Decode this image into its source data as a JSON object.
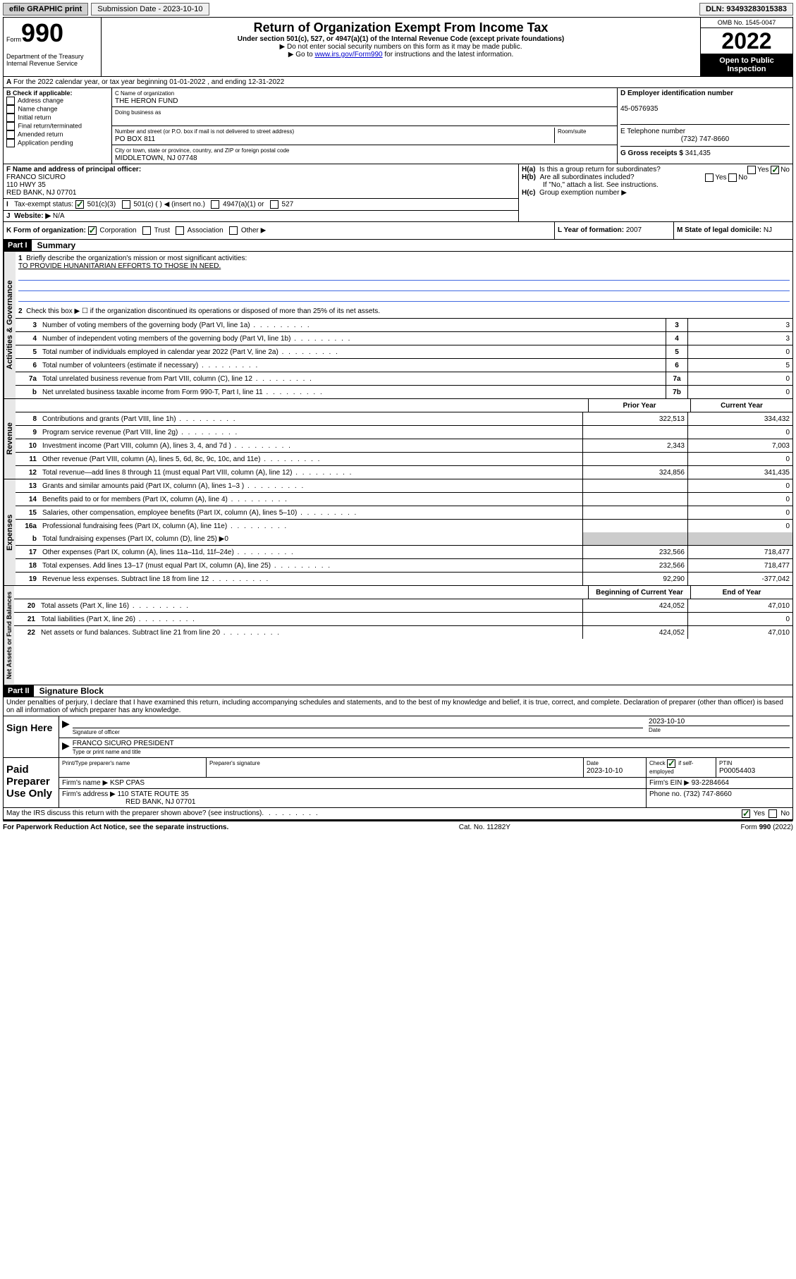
{
  "topbar": {
    "efile": "efile GRAPHIC print",
    "submission": "Submission Date - 2023-10-10",
    "dln": "DLN: 93493283015383"
  },
  "header": {
    "form_label": "Form",
    "form_number": "990",
    "dept": "Department of the Treasury\nInternal Revenue Service",
    "title": "Return of Organization Exempt From Income Tax",
    "subtitle": "Under section 501(c), 527, or 4947(a)(1) of the Internal Revenue Code (except private foundations)",
    "instr1": "▶ Do not enter social security numbers on this form as it may be made public.",
    "instr2_pre": "▶ Go to ",
    "instr2_link": "www.irs.gov/Form990",
    "instr2_post": " for instructions and the latest information.",
    "omb": "OMB No. 1545-0047",
    "year": "2022",
    "open": "Open to Public Inspection"
  },
  "line_a": "For the 2022 calendar year, or tax year beginning 01-01-2022   , and ending 12-31-2022",
  "box_b": {
    "label": "B Check if applicable:",
    "items": [
      "Address change",
      "Name change",
      "Initial return",
      "Final return/terminated",
      "Amended return",
      "Application pending"
    ]
  },
  "box_c": {
    "name_label": "C Name of organization",
    "name": "THE HERON FUND",
    "dba_label": "Doing business as",
    "street_label": "Number and street (or P.O. box if mail is not delivered to street address)",
    "room_label": "Room/suite",
    "street": "PO BOX 811",
    "city_label": "City or town, state or province, country, and ZIP or foreign postal code",
    "city": "MIDDLETOWN, NJ  07748"
  },
  "box_d": {
    "label": "D Employer identification number",
    "ein": "45-0576935"
  },
  "box_e": {
    "label": "E Telephone number",
    "phone": "(732) 747-8660"
  },
  "box_g": {
    "label": "G Gross receipts $",
    "amount": "341,435"
  },
  "box_f": {
    "label": "F Name and address of principal officer:",
    "name": "FRANCO SICURO",
    "addr1": "110 HWY 35",
    "addr2": "RED BANK, NJ  07701"
  },
  "box_h": {
    "ha": "Is this a group return for subordinates?",
    "hb": "Are all subordinates included?",
    "hb_note": "If \"No,\" attach a list. See instructions.",
    "hc": "Group exemption number ▶",
    "yes": "Yes",
    "no": "No"
  },
  "box_i": {
    "label": "Tax-exempt status:",
    "opts": [
      "501(c)(3)",
      "501(c) (  ) ◀ (insert no.)",
      "4947(a)(1) or",
      "527"
    ]
  },
  "box_j": {
    "label": "Website: ▶",
    "value": "N/A"
  },
  "box_k": {
    "label": "K Form of organization:",
    "opts": [
      "Corporation",
      "Trust",
      "Association",
      "Other ▶"
    ]
  },
  "box_l": {
    "label": "L Year of formation:",
    "value": "2007"
  },
  "box_m": {
    "label": "M State of legal domicile:",
    "value": "NJ"
  },
  "part1": {
    "header": "Part I",
    "title": "Summary",
    "line1": "Briefly describe the organization's mission or most significant activities:",
    "mission": "TO PROVIDE HUNANITARIAN EFFORTS TO THOSE IN NEED.",
    "line2": "Check this box ▶ ☐  if the organization discontinued its operations or disposed of more than 25% of its net assets.",
    "governance_label": "Activities & Governance",
    "revenue_label": "Revenue",
    "expenses_label": "Expenses",
    "netassets_label": "Net Assets or Fund Balances",
    "lines_gov": [
      {
        "n": "3",
        "t": "Number of voting members of the governing body (Part VI, line 1a)",
        "box": "3",
        "v": "3"
      },
      {
        "n": "4",
        "t": "Number of independent voting members of the governing body (Part VI, line 1b)",
        "box": "4",
        "v": "3"
      },
      {
        "n": "5",
        "t": "Total number of individuals employed in calendar year 2022 (Part V, line 2a)",
        "box": "5",
        "v": "0"
      },
      {
        "n": "6",
        "t": "Total number of volunteers (estimate if necessary)",
        "box": "6",
        "v": "5"
      },
      {
        "n": "7a",
        "t": "Total unrelated business revenue from Part VIII, column (C), line 12",
        "box": "7a",
        "v": "0"
      },
      {
        "n": "b",
        "t": "Net unrelated business taxable income from Form 990-T, Part I, line 11",
        "box": "7b",
        "v": "0"
      }
    ],
    "col_prior": "Prior Year",
    "col_current": "Current Year",
    "col_beg": "Beginning of Current Year",
    "col_end": "End of Year",
    "lines_rev": [
      {
        "n": "8",
        "t": "Contributions and grants (Part VIII, line 1h)",
        "p": "322,513",
        "c": "334,432"
      },
      {
        "n": "9",
        "t": "Program service revenue (Part VIII, line 2g)",
        "p": "",
        "c": "0"
      },
      {
        "n": "10",
        "t": "Investment income (Part VIII, column (A), lines 3, 4, and 7d )",
        "p": "2,343",
        "c": "7,003"
      },
      {
        "n": "11",
        "t": "Other revenue (Part VIII, column (A), lines 5, 6d, 8c, 9c, 10c, and 11e)",
        "p": "",
        "c": "0"
      },
      {
        "n": "12",
        "t": "Total revenue—add lines 8 through 11 (must equal Part VIII, column (A), line 12)",
        "p": "324,856",
        "c": "341,435"
      }
    ],
    "lines_exp": [
      {
        "n": "13",
        "t": "Grants and similar amounts paid (Part IX, column (A), lines 1–3 )",
        "p": "",
        "c": "0"
      },
      {
        "n": "14",
        "t": "Benefits paid to or for members (Part IX, column (A), line 4)",
        "p": "",
        "c": "0"
      },
      {
        "n": "15",
        "t": "Salaries, other compensation, employee benefits (Part IX, column (A), lines 5–10)",
        "p": "",
        "c": "0"
      },
      {
        "n": "16a",
        "t": "Professional fundraising fees (Part IX, column (A), line 11e)",
        "p": "",
        "c": "0"
      }
    ],
    "line16b": "Total fundraising expenses (Part IX, column (D), line 25) ▶0",
    "lines_exp2": [
      {
        "n": "17",
        "t": "Other expenses (Part IX, column (A), lines 11a–11d, 11f–24e)",
        "p": "232,566",
        "c": "718,477"
      },
      {
        "n": "18",
        "t": "Total expenses. Add lines 13–17 (must equal Part IX, column (A), line 25)",
        "p": "232,566",
        "c": "718,477"
      },
      {
        "n": "19",
        "t": "Revenue less expenses. Subtract line 18 from line 12",
        "p": "92,290",
        "c": "-377,042"
      }
    ],
    "lines_net": [
      {
        "n": "20",
        "t": "Total assets (Part X, line 16)",
        "p": "424,052",
        "c": "47,010"
      },
      {
        "n": "21",
        "t": "Total liabilities (Part X, line 26)",
        "p": "",
        "c": "0"
      },
      {
        "n": "22",
        "t": "Net assets or fund balances. Subtract line 21 from line 20",
        "p": "424,052",
        "c": "47,010"
      }
    ]
  },
  "part2": {
    "header": "Part II",
    "title": "Signature Block",
    "penalty": "Under penalties of perjury, I declare that I have examined this return, including accompanying schedules and statements, and to the best of my knowledge and belief, it is true, correct, and complete. Declaration of preparer (other than officer) is based on all information of which preparer has any knowledge.",
    "sign_here": "Sign Here",
    "sig_officer": "Signature of officer",
    "date_label": "Date",
    "sig_date": "2023-10-10",
    "officer_name": "FRANCO SICURO PRESIDENT",
    "type_name": "Type or print name and title",
    "paid_prep": "Paid Preparer Use Only",
    "prep_name_label": "Print/Type preparer's name",
    "prep_sig_label": "Preparer's signature",
    "prep_date": "2023-10-10",
    "check_self": "Check ☑ if self-employed",
    "ptin_label": "PTIN",
    "ptin": "P00054403",
    "firm_name_label": "Firm's name    ▶",
    "firm_name": "KSP CPAS",
    "firm_ein_label": "Firm's EIN ▶",
    "firm_ein": "93-2284664",
    "firm_addr_label": "Firm's address ▶",
    "firm_addr1": "110 STATE ROUTE 35",
    "firm_addr2": "RED BANK, NJ  07701",
    "phone_label": "Phone no.",
    "phone": "(732) 747-8660",
    "discuss": "May the IRS discuss this return with the preparer shown above? (see instructions)"
  },
  "footer": {
    "left": "For Paperwork Reduction Act Notice, see the separate instructions.",
    "center": "Cat. No. 11282Y",
    "right": "Form 990 (2022)"
  }
}
